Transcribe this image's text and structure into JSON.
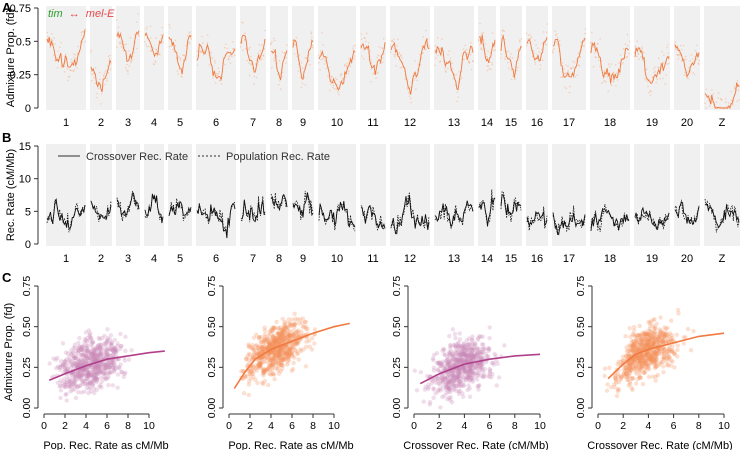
{
  "panel_letters": {
    "a": "A",
    "b": "B",
    "c": "C"
  },
  "legend_a": {
    "left": "tim",
    "arrow": "↔",
    "right": "mel-E"
  },
  "colors": {
    "band": "#f0f0f0",
    "orange": "#f5915a",
    "orange_line": "#f07a40",
    "purple": "#c98ab8",
    "purple_line": "#b0408a",
    "tim": "#2ca02c",
    "melE": "#e8494a"
  },
  "chart_data": [
    {
      "type": "line",
      "panel": "A",
      "ylabel": "Admixture Prop. (fd)",
      "ylim": [
        0,
        0.75
      ],
      "yticks": [
        "0",
        "0.25",
        "0.5",
        "0.75"
      ],
      "categories": [
        "1",
        "2",
        "3",
        "4",
        "5",
        "6",
        "7",
        "8",
        "9",
        "10",
        "11",
        "12",
        "13",
        "14",
        "15",
        "16",
        "17",
        "18",
        "19",
        "20",
        "Z"
      ],
      "chrom_means": [
        0.45,
        0.3,
        0.5,
        0.52,
        0.47,
        0.4,
        0.45,
        0.4,
        0.45,
        0.35,
        0.45,
        0.4,
        0.4,
        0.52,
        0.45,
        0.48,
        0.42,
        0.4,
        0.35,
        0.42,
        0.08
      ]
    },
    {
      "type": "line",
      "panel": "B",
      "ylabel": "Rec. Rate (cM/Mb)",
      "ylim": [
        0,
        15
      ],
      "yticks": [
        "0",
        "5",
        "10",
        "15"
      ],
      "categories": [
        "1",
        "2",
        "3",
        "4",
        "5",
        "6",
        "7",
        "8",
        "9",
        "10",
        "11",
        "12",
        "13",
        "14",
        "15",
        "16",
        "17",
        "18",
        "19",
        "20",
        "Z"
      ],
      "series": [
        {
          "name": "Crossover Rec. Rate",
          "dash": "solid"
        },
        {
          "name": "Population Rec. Rate",
          "dash": "dotted"
        }
      ],
      "chrom_means": [
        4.5,
        5.5,
        6.0,
        5.5,
        5.5,
        4.5,
        5.0,
        6.0,
        5.5,
        4.5,
        4.5,
        4.0,
        4.5,
        6.0,
        5.5,
        4.0,
        4.0,
        4.0,
        4.0,
        4.5,
        4.5
      ]
    },
    {
      "type": "scatter",
      "panel": "C1",
      "xlabel": "Pop. Rec. Rate as cM/Mb",
      "ylabel": "Admixture Prop. (fd)",
      "xlim": [
        0,
        12
      ],
      "ylim": [
        0,
        0.75
      ],
      "xticks": [
        "0",
        "2",
        "4",
        "6",
        "8",
        "10"
      ],
      "yticks": [
        "0.00",
        "0.25",
        "0.50",
        "0.75"
      ],
      "color": "purple",
      "trend": [
        [
          0.5,
          0.17
        ],
        [
          2,
          0.21
        ],
        [
          4,
          0.26
        ],
        [
          6,
          0.3
        ],
        [
          8,
          0.32
        ],
        [
          10,
          0.34
        ],
        [
          11.5,
          0.35
        ]
      ]
    },
    {
      "type": "scatter",
      "panel": "C2",
      "xlabel": "Pop. Rec. Rate as cM/Mb",
      "ylabel": "",
      "xlim": [
        0,
        12
      ],
      "ylim": [
        0,
        0.75
      ],
      "xticks": [
        "0",
        "2",
        "4",
        "6",
        "8",
        "10"
      ],
      "yticks": [
        "0.00",
        "0.25",
        "0.50",
        "0.75"
      ],
      "color": "orange",
      "trend": [
        [
          0.5,
          0.12
        ],
        [
          1.5,
          0.22
        ],
        [
          2.5,
          0.3
        ],
        [
          4,
          0.36
        ],
        [
          6,
          0.41
        ],
        [
          8,
          0.46
        ],
        [
          10,
          0.5
        ],
        [
          11.5,
          0.52
        ]
      ]
    },
    {
      "type": "scatter",
      "panel": "C3",
      "xlabel": "Crossover Rec. Rate (cM/Mb)",
      "ylabel": "",
      "xlim": [
        0,
        10
      ],
      "ylim": [
        0,
        0.75
      ],
      "xticks": [
        "0",
        "2",
        "4",
        "6",
        "8",
        "10"
      ],
      "yticks": [
        "0.00",
        "0.25",
        "0.50",
        "0.75"
      ],
      "color": "purple",
      "trend": [
        [
          0.5,
          0.15
        ],
        [
          2,
          0.21
        ],
        [
          4,
          0.27
        ],
        [
          6,
          0.3
        ],
        [
          8,
          0.32
        ],
        [
          10,
          0.33
        ]
      ]
    },
    {
      "type": "scatter",
      "panel": "C4",
      "xlabel": "Crossover Rec. Rate (cM/Mb)",
      "ylabel": "",
      "xlim": [
        0,
        10
      ],
      "ylim": [
        0,
        0.75
      ],
      "xticks": [
        "0",
        "2",
        "4",
        "6",
        "8",
        "10"
      ],
      "yticks": [
        "0.00",
        "0.25",
        "0.50",
        "0.75"
      ],
      "color": "orange",
      "trend": [
        [
          0.8,
          0.18
        ],
        [
          2,
          0.27
        ],
        [
          3,
          0.33
        ],
        [
          4,
          0.36
        ],
        [
          6,
          0.4
        ],
        [
          8,
          0.44
        ],
        [
          10,
          0.46
        ]
      ]
    }
  ]
}
